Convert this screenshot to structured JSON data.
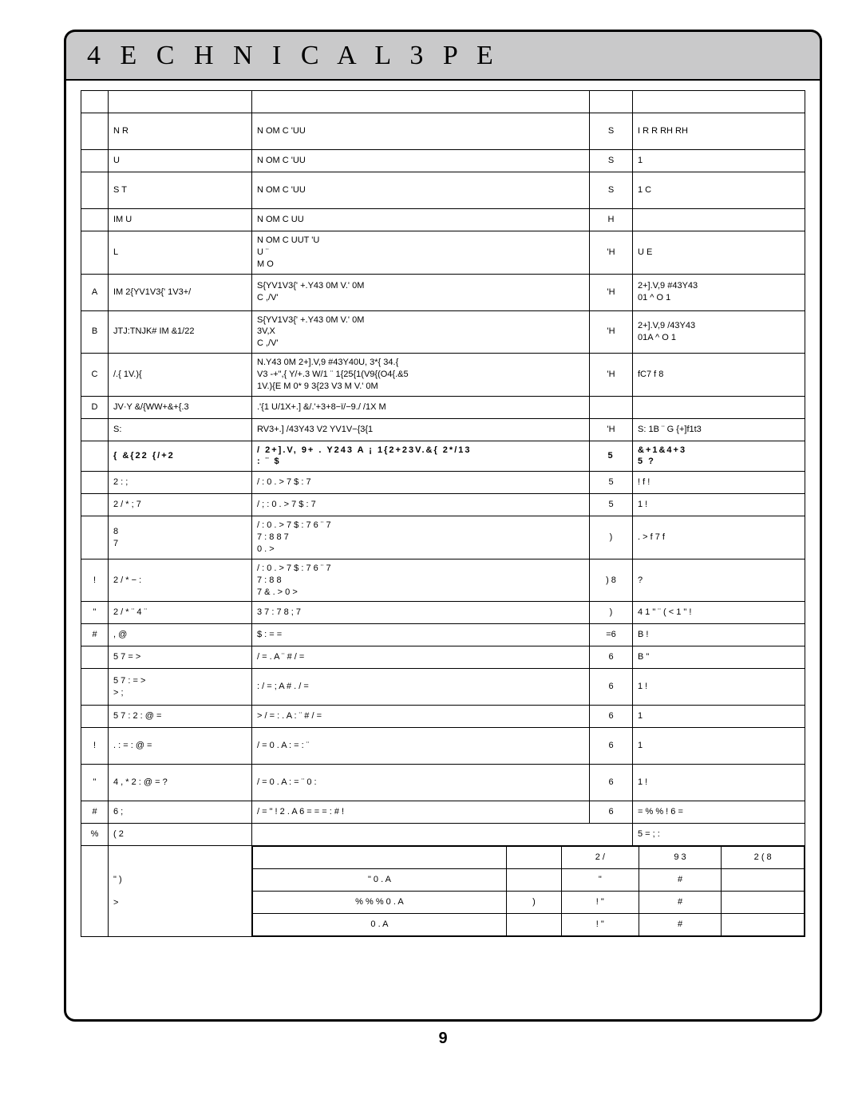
{
  "title": "4 E C H N I C A L   3 P E",
  "page_number": "9",
  "columns": {
    "no": "",
    "name": "",
    "spec": "",
    "max": "",
    "typ": ""
  },
  "rows": [
    {
      "height": "row-l",
      "no": "",
      "name": "",
      "spec": "",
      "max": "",
      "typ": ""
    },
    {
      "height": "row-h",
      "no": "",
      "name": "N           R",
      "spec": "N           OM     C       'UU",
      "max": "S",
      "typ": "I  R     R    RH    RH"
    },
    {
      "height": "row-l",
      "no": "",
      "name": "U",
      "spec": "N           OM     C       'UU",
      "max": "S",
      "typ": "1"
    },
    {
      "height": "row-h",
      "no": "",
      "name": "S     T",
      "spec": "N           OM     C       'UU",
      "max": "S",
      "typ": "1   C"
    },
    {
      "height": "row-l",
      "no": "",
      "name": "IM     U",
      "spec": "N           OM     C        UU",
      "max": "H",
      "typ": ""
    },
    {
      "height": "row-h",
      "no": "",
      "name": "L",
      "spec": "N           OM     C        UUT  'U\nU                                 ¨\n     M        O",
      "max": "'H",
      "typ": "U       E"
    },
    {
      "height": "row-h",
      "no": "A",
      "name": "IM   2{YV1V3{'   1V3+/",
      "spec": "S{YV1V3{'  +.Y43     0M     V.'     0M\nC     ,/V'",
      "max": "'H",
      "typ": "2+].V,9  #43Y43\n         01   ^         O 1"
    },
    {
      "height": "row-h",
      "no": "B",
      "name": "JTJ:TNJK#  IM  &1/22",
      "spec": "S{YV1V3{'  +.Y43     0M     V.'     0M\n3V,X\nC     ,/V'",
      "max": "'H",
      "typ": "2+].V,9  /43Y43\n         01A  ^         O 1"
    },
    {
      "height": "row-h",
      "no": "C",
      "name": "/.{   1V.){",
      "spec": "N.Y43     0M     2+].V,9  #43Y40U,   3*{   34.{\nV3  -+\",{  Y/+.3  W/1 ¨ 1{25{1(V9{(O4{.&5\n1V.){E           M   0*   9  3{23   V3         M   V.'     0M",
      "max": "'H",
      "typ": "fC7 f   8"
    },
    {
      "height": "row-l",
      "no": "D",
      "name": "JV·Y  &/{WW+&+{.3",
      "spec": ".'{1   U/1X+.]   &/.'+3+8−ï/−9./     /1X      M",
      "max": "",
      "typ": ""
    },
    {
      "height": "row-l",
      "no": "",
      "name": "S:",
      "spec": "RV3+.]  /43Y43  V2  YV1V−{3{1",
      "max": "'H",
      "typ": "S:   1B  ¨   G     {+]f1t3"
    }
  ],
  "subheader": {
    "no": "",
    "name": "{   &{22   {/+2",
    "spec": "/   2+].V,  9+ . Y243  A ¡ 1{2+23V.&{   2*/13\n    :   ¨      $",
    "max": "5",
    "typ": "&+1&4+3\n5     ?"
  },
  "rows2": [
    {
      "height": "row-l",
      "no": "",
      "name": "2       :            ;",
      "spec": "/  :      0 . >        7   $    : 7",
      "max": "5",
      "typ": "!  f  !"
    },
    {
      "height": "row-l",
      "no": "",
      "name": "2 / *    ;      7",
      "spec": "/ ; :     0 . >        7   $    : 7",
      "max": "5",
      "typ": "1   !"
    },
    {
      "height": "row-h",
      "no": "",
      "name": "8\n           7",
      "spec": "/  :      0 . >        7   $    : 7  6   ¨ 7\n7                :         8         8                   7\n0 . >",
      "max": ")",
      "typ": ". > f 7    f"
    },
    {
      "height": "row-h",
      "no": "!",
      "name": "2 / *  −             :",
      "spec": "/  :      0 . >        7   $    : 7  6   ¨  7\n         7            :         8         8\n7       &    . > 0  >",
      "max": ") 8",
      "typ": "?"
    },
    {
      "height": "row-l",
      "no": "\"",
      "name": "2 / * ¨ 4      ¨",
      "spec": "3 7          :      7       8       ; 7",
      "max": ")",
      "typ": "4    1 \"    ¨ (   <     1 \" !"
    },
    {
      "height": "row-l",
      "no": "#",
      "name": ", @",
      "spec": "$           :       =                           =",
      "max": "=6",
      "typ": "B   !"
    },
    {
      "height": "row-l",
      "no": "",
      "name": "5 7       =            >",
      "spec": "/  =       . A                      ¨ #    /   =",
      "max": "6",
      "typ": "B   \""
    },
    {
      "height": "row-h",
      "no": "",
      "name": "5 7         :     =       >\n             >    ;",
      "spec": ": /   =     ;             A # .    /   =",
      "max": "6",
      "typ": "1    !"
    },
    {
      "height": "row-l",
      "no": "",
      "name": "5 7       :   2 : @       =",
      "spec": "> / = :      . A        :             ¨ #    /   =",
      "max": "6",
      "typ": "1"
    },
    {
      "height": "row-h",
      "no": "!",
      "name": ".  :  =        : @       =",
      "spec": "/  =      0 . A        :        = : ¨",
      "max": "6",
      "typ": "1"
    },
    {
      "height": "row-h",
      "no": "\"",
      "name": "4 , *  2 : @      =    ?",
      "spec": "/  =      0 . A        :        =  ¨     0      :",
      "max": "6",
      "typ": "1    !"
    },
    {
      "height": "row-l",
      "no": "#",
      "name": "6        ;",
      "spec": "/   =      \" ! 2 . A    6  = =        =  :  # !",
      "max": "6",
      "typ": "=   %       % !    6  ="
    }
  ],
  "bottom": {
    "block1": {
      "no": "%",
      "name": "( 2",
      "spec": "",
      "max": "",
      "typ": "5 =      ;    :"
    },
    "block2": {
      "name_row1": "\"   )",
      "name_row2": ">"
    },
    "table_header": [
      "",
      "2 /",
      "9 3",
      "2 ( 8"
    ],
    "table_rows": [
      [
        "\"   0 . A",
        "",
        "\"",
        "#"
      ],
      [
        "% % % 0 . A",
        ")",
        "! \"",
        "#"
      ],
      [
        "0 . A",
        "",
        "! \"",
        "#"
      ]
    ]
  }
}
